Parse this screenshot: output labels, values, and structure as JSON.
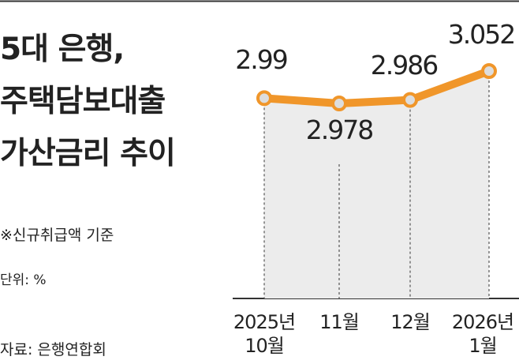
{
  "chart_data": {
    "type": "line",
    "title": "5대 은행,\n주택담보대출\n가산금리 추이",
    "note": "※신규취급액 기준",
    "unit": "단위: %",
    "source": "자료: 은행연합회",
    "categories": [
      "2025년\n10월",
      "11월",
      "12월",
      "2026년\n1월"
    ],
    "series": [
      {
        "name": "가산금리",
        "color": "#f0962a",
        "values": [
          2.99,
          2.978,
          2.986,
          3.052
        ]
      }
    ]
  }
}
